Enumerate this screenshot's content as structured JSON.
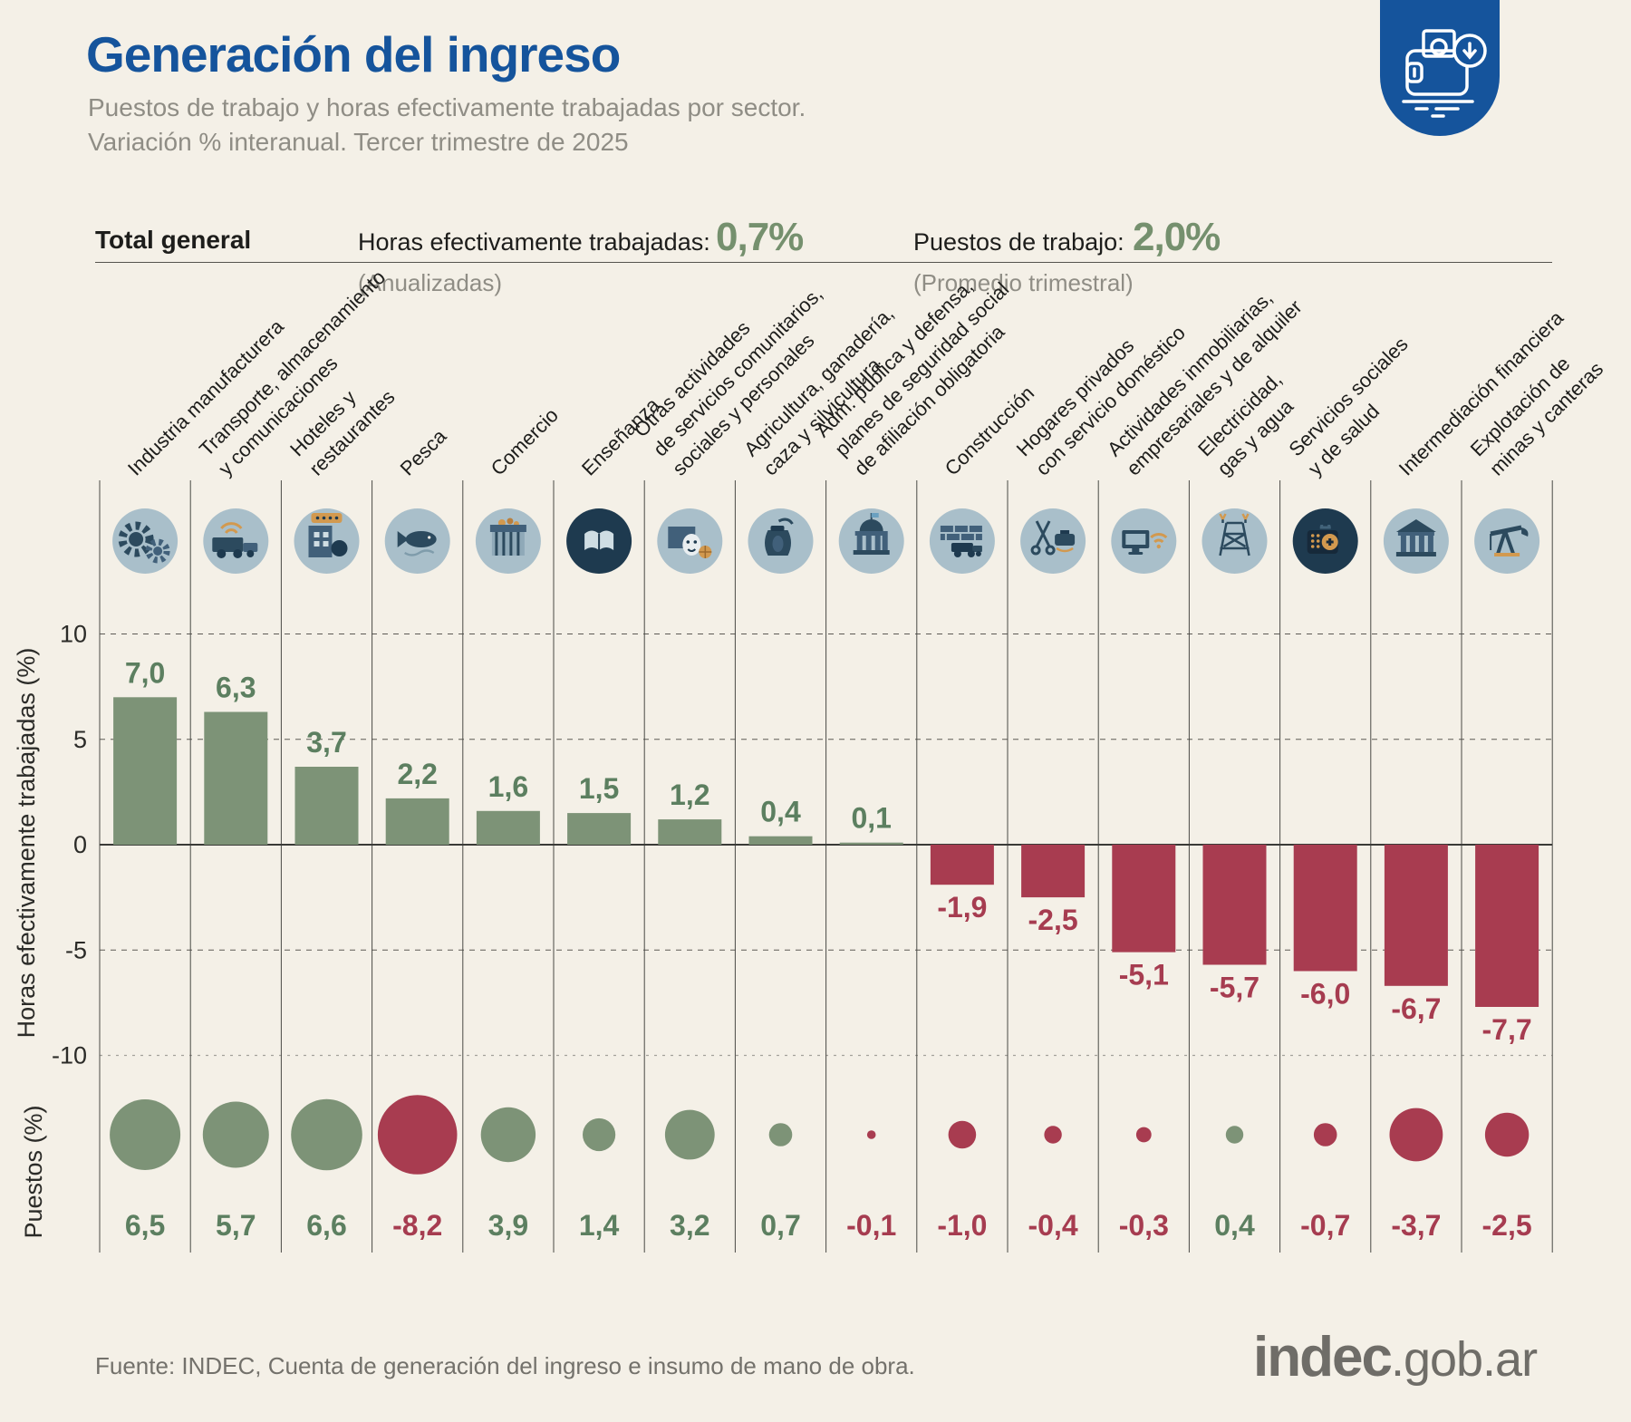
{
  "header": {
    "title": "Generación del ingreso",
    "subtitle_line1": "Puestos de trabajo y horas efectivamente trabajadas por sector.",
    "subtitle_line2": "Variación % interanual. Tercer trimestre de 2025",
    "badge_icon": "wallet-download-icon"
  },
  "totals": {
    "label": "Total general",
    "hours": {
      "label": "Horas efectivamente trabajadas:",
      "value": "0,7%",
      "note": "(Anualizadas)"
    },
    "jobs": {
      "label": "Puestos de trabajo:",
      "value": "2,0%",
      "note": "(Promedio trimestral)"
    }
  },
  "chart_data": {
    "type": "bar",
    "bar_axis_label": "Horas efectivamente trabajadas (%)",
    "bubble_axis_label": "Puestos (%)",
    "y_axis_ticks": [
      10,
      5,
      0,
      -5,
      -10
    ],
    "y_axis_range": [
      -10,
      10
    ],
    "colors": {
      "positive": "#7d9377",
      "negative": "#a83c50",
      "positive_text": "#5c7f60",
      "negative_text": "#a63c50"
    },
    "series": [
      {
        "name": "Horas efectivamente trabajadas (%)",
        "values": [
          7.0,
          6.3,
          3.7,
          2.2,
          1.6,
          1.5,
          1.2,
          0.4,
          0.1,
          -1.9,
          -2.5,
          -5.1,
          -5.7,
          -6.0,
          -6.7,
          -7.7
        ]
      },
      {
        "name": "Puestos (%)",
        "values": [
          6.5,
          5.7,
          6.6,
          -8.2,
          3.9,
          1.4,
          3.2,
          0.7,
          -0.1,
          -1.0,
          -0.4,
          -0.3,
          0.4,
          -0.7,
          -3.7,
          -2.5
        ]
      }
    ],
    "sectors": [
      {
        "label": [
          "Industria manufacturera"
        ],
        "icon": "gears-icon",
        "hours": 7.0,
        "jobs": 6.5
      },
      {
        "label": [
          "Transporte, almacenamiento",
          "y comunicaciones"
        ],
        "icon": "truck-wifi-icon",
        "hours": 6.3,
        "jobs": 5.7
      },
      {
        "label": [
          "Hoteles y",
          "restaurantes"
        ],
        "icon": "hotel-icon",
        "hours": 3.7,
        "jobs": 6.6
      },
      {
        "label": [
          "Pesca"
        ],
        "icon": "fish-icon",
        "hours": 2.2,
        "jobs": -8.2
      },
      {
        "label": [
          "Comercio"
        ],
        "icon": "market-stall-icon",
        "hours": 1.6,
        "jobs": 3.9
      },
      {
        "label": [
          "Enseñanza"
        ],
        "icon": "open-book-icon",
        "hours": 1.5,
        "jobs": 1.4
      },
      {
        "label": [
          "Otras actividades",
          "de servicios comunitarios,",
          "sociales y personales"
        ],
        "icon": "theater-mask-icon",
        "hours": 1.2,
        "jobs": 3.2
      },
      {
        "label": [
          "Agricultura, ganadería,",
          "caza y silvicultura"
        ],
        "icon": "grain-sack-icon",
        "hours": 0.4,
        "jobs": 0.7
      },
      {
        "label": [
          "Adm. pública y defensa,",
          "planes de seguridad social",
          "de afiliación obligatoria"
        ],
        "icon": "government-building-icon",
        "hours": 0.1,
        "jobs": -0.1
      },
      {
        "label": [
          "Construcción"
        ],
        "icon": "bricks-truck-icon",
        "hours": -1.9,
        "jobs": -1.0
      },
      {
        "label": [
          "Hogares privados",
          "con servicio doméstico"
        ],
        "icon": "scissors-pot-icon",
        "hours": -2.5,
        "jobs": -0.4
      },
      {
        "label": [
          "Actividades inmobiliarias,",
          "empresariales y de alquiler"
        ],
        "icon": "monitor-wifi-icon",
        "hours": -5.1,
        "jobs": -0.3
      },
      {
        "label": [
          "Electricidad,",
          "gas y agua"
        ],
        "icon": "power-pylon-icon",
        "hours": -5.7,
        "jobs": 0.4
      },
      {
        "label": [
          "Servicios sociales",
          "y de salud"
        ],
        "icon": "medical-kit-icon",
        "hours": -6.0,
        "jobs": -0.7
      },
      {
        "label": [
          "Intermediación financiera"
        ],
        "icon": "bank-icon",
        "hours": -6.7,
        "jobs": -3.7
      },
      {
        "label": [
          "Explotación de",
          "minas y canteras"
        ],
        "icon": "oil-pumpjack-icon",
        "hours": -7.7,
        "jobs": -2.5
      }
    ]
  },
  "footer": {
    "source": "Fuente: INDEC, Cuenta de generación del ingreso e insumo de mano de obra.",
    "logo_primary": "indec",
    "logo_secondary": ".gob.ar"
  }
}
